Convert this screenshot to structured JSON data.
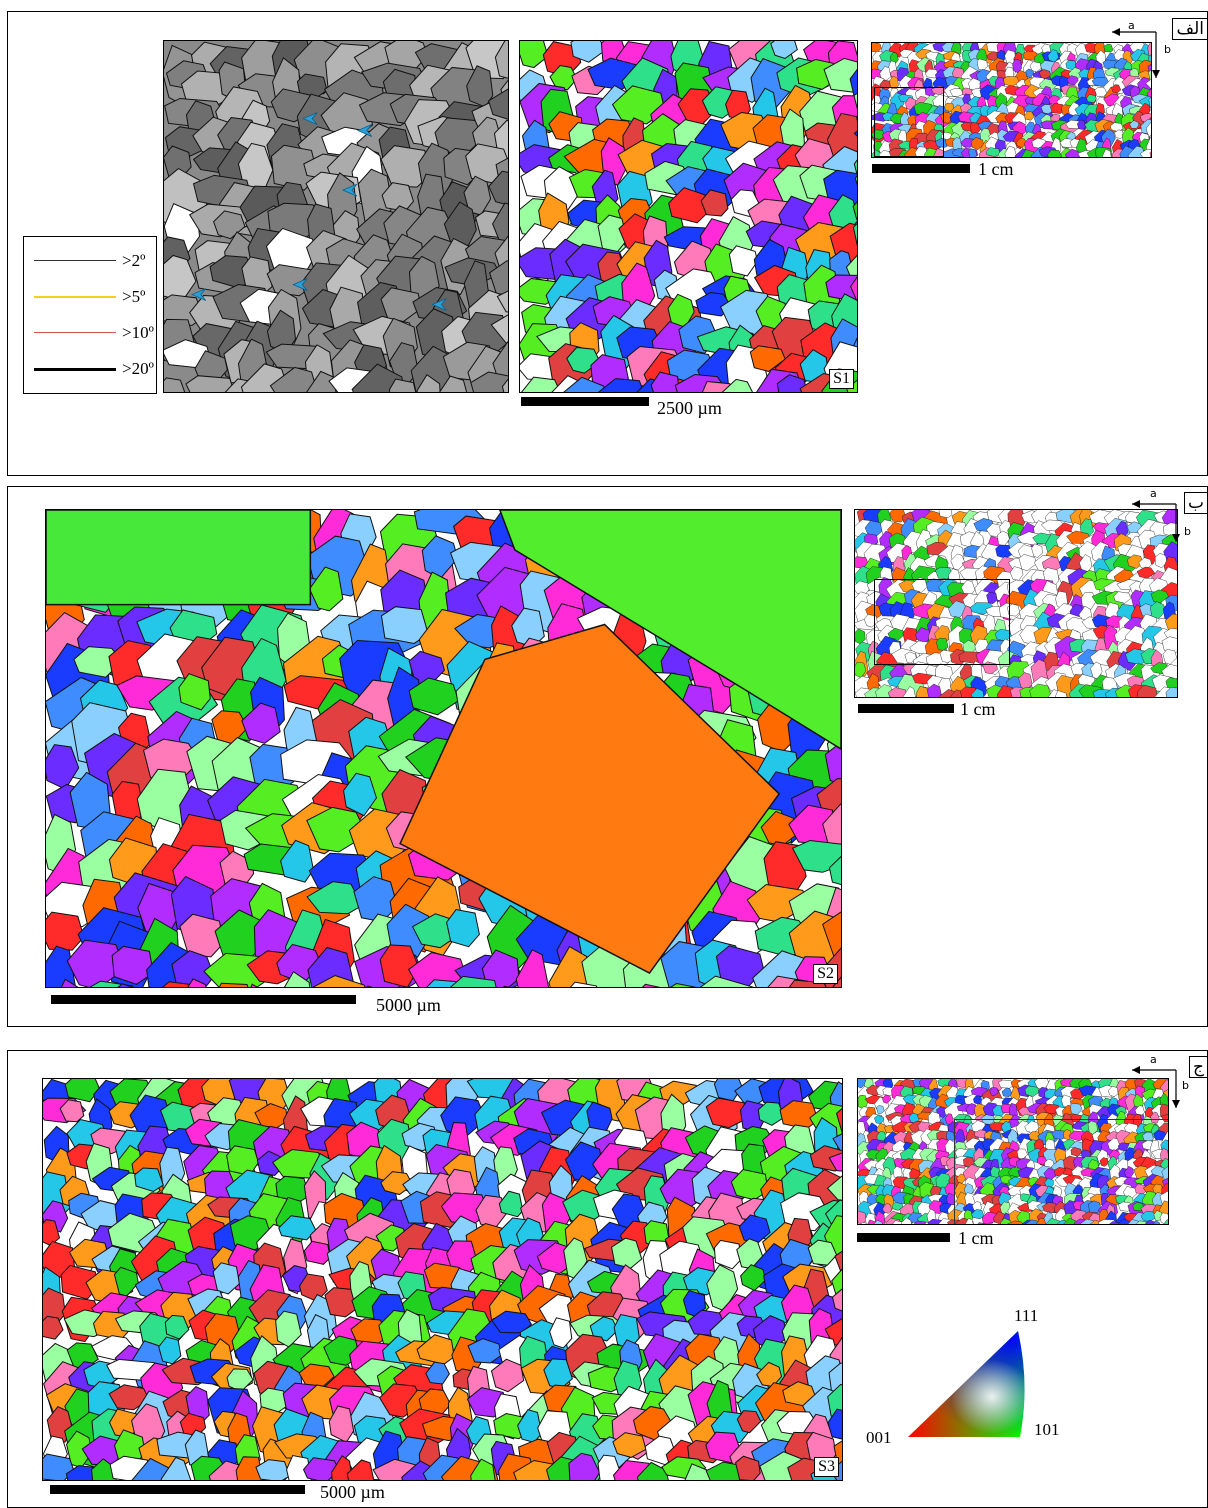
{
  "panels": {
    "a": {
      "label": "الف",
      "sample": "S1",
      "scale_main": "2500 µm",
      "scale_overview": "1 cm"
    },
    "b": {
      "label": "ب",
      "sample": "S2",
      "scale_main": "5000 µm",
      "scale_overview": "1 cm"
    },
    "c": {
      "label": "ج",
      "sample": "S3",
      "scale_main": "5000 µm",
      "scale_overview": "1 cm"
    }
  },
  "axes": {
    "a": "a",
    "b": "b"
  },
  "legend": {
    "items": [
      {
        "label": ">2º",
        "color": "#333333"
      },
      {
        "label": ">5º",
        "color": "#f2d21a"
      },
      {
        "label": ">10º",
        "color": "#d9534f"
      },
      {
        "label": ">20º",
        "color": "#000000"
      }
    ]
  },
  "ipf_key": {
    "corner_001": "001",
    "corner_111": "111",
    "corner_101": "101"
  },
  "colors": {
    "border": "#000000",
    "background": "#ffffff",
    "arrow": "#2a9fd6"
  }
}
